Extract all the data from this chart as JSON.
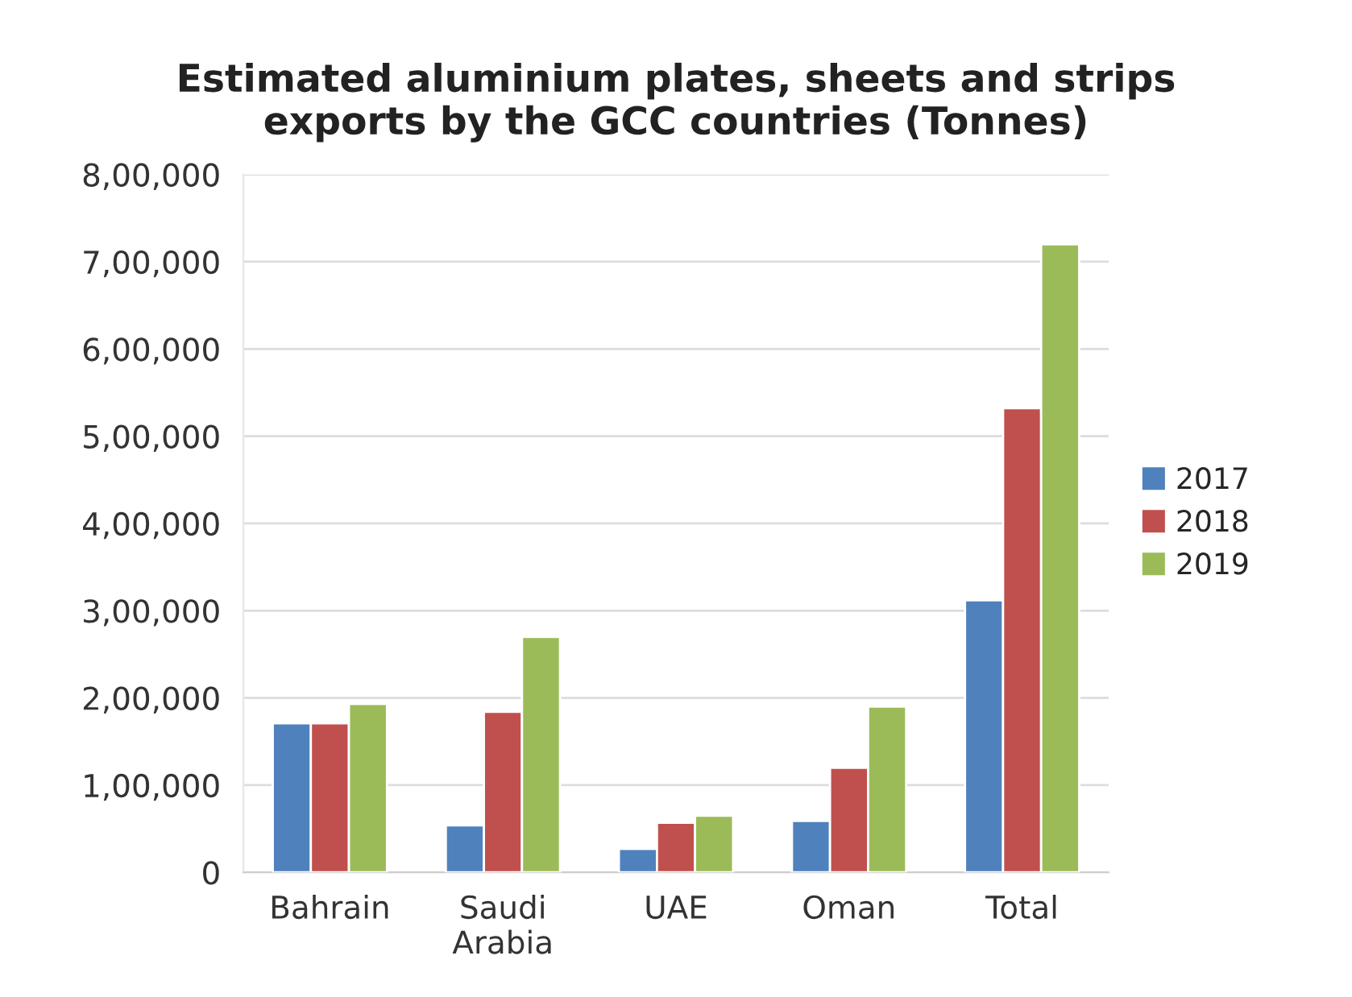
{
  "chart_data": {
    "type": "bar",
    "title": "Estimated aluminium plates, sheets and strips\nexports by the GCC countries (Tonnes)",
    "categories": [
      "Bahrain",
      "Saudi\nArabia",
      "UAE",
      "Oman",
      "Total"
    ],
    "series": [
      {
        "name": "2017",
        "color": "#4f81bd",
        "values": [
          171000,
          54000,
          27000,
          59000,
          312000
        ]
      },
      {
        "name": "2018",
        "color": "#c0504d",
        "values": [
          171000,
          184000,
          57000,
          120000,
          532000
        ]
      },
      {
        "name": "2019",
        "color": "#9bbb59",
        "values": [
          193000,
          270000,
          65000,
          190000,
          720000
        ]
      }
    ],
    "ylim": [
      0,
      800000
    ],
    "yticks": [
      0,
      {
        "value": 100000,
        "label": "1,00,000"
      },
      {
        "value": 200000,
        "label": "2,00,000"
      },
      {
        "value": 300000,
        "label": "3,00,000"
      },
      {
        "value": 400000,
        "label": "4,00,000"
      },
      {
        "value": 500000,
        "label": "5,00,000"
      },
      {
        "value": 600000,
        "label": "6,00,000"
      },
      {
        "value": 700000,
        "label": "7,00,000"
      },
      {
        "value": 800000,
        "label": "8,00,000"
      }
    ],
    "grid": "y",
    "legend": "right"
  }
}
